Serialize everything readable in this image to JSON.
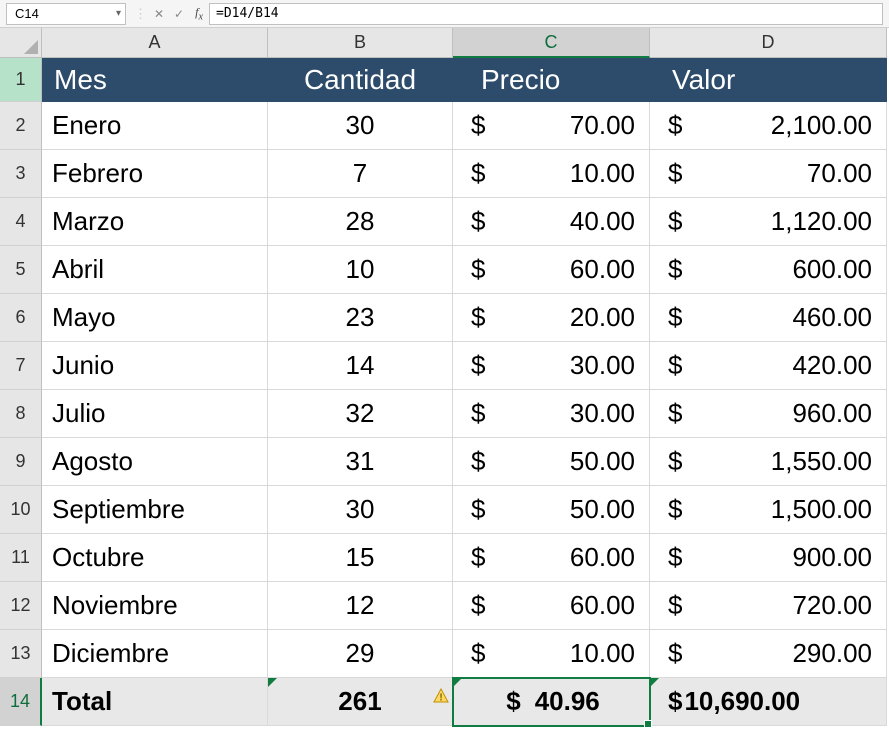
{
  "formula_bar": {
    "cell_ref": "C14",
    "formula": "=D14/B14"
  },
  "columns": {
    "A": "A",
    "B": "B",
    "C": "C",
    "D": "D"
  },
  "headers": {
    "mes": "Mes",
    "cantidad": "Cantidad",
    "precio": "Precio",
    "valor": "Valor"
  },
  "rows": [
    {
      "n": "2",
      "mes": "Enero",
      "cant": "30",
      "precio": "70.00",
      "valor": "2,100.00"
    },
    {
      "n": "3",
      "mes": "Febrero",
      "cant": "7",
      "precio": "10.00",
      "valor": "70.00"
    },
    {
      "n": "4",
      "mes": "Marzo",
      "cant": "28",
      "precio": "40.00",
      "valor": "1,120.00"
    },
    {
      "n": "5",
      "mes": "Abril",
      "cant": "10",
      "precio": "60.00",
      "valor": "600.00"
    },
    {
      "n": "6",
      "mes": "Mayo",
      "cant": "23",
      "precio": "20.00",
      "valor": "460.00"
    },
    {
      "n": "7",
      "mes": "Junio",
      "cant": "14",
      "precio": "30.00",
      "valor": "420.00"
    },
    {
      "n": "8",
      "mes": "Julio",
      "cant": "32",
      "precio": "30.00",
      "valor": "960.00"
    },
    {
      "n": "9",
      "mes": "Agosto",
      "cant": "31",
      "precio": "50.00",
      "valor": "1,550.00"
    },
    {
      "n": "10",
      "mes": "Septiembre",
      "cant": "30",
      "precio": "50.00",
      "valor": "1,500.00"
    },
    {
      "n": "11",
      "mes": "Octubre",
      "cant": "15",
      "precio": "60.00",
      "valor": "900.00"
    },
    {
      "n": "12",
      "mes": "Noviembre",
      "cant": "12",
      "precio": "60.00",
      "valor": "720.00"
    },
    {
      "n": "13",
      "mes": "Diciembre",
      "cant": "29",
      "precio": "10.00",
      "valor": "290.00"
    }
  ],
  "total": {
    "n": "14",
    "label": "Total",
    "cant": "261",
    "precio": "40.96",
    "valor": "10,690.00"
  },
  "currency_symbol": "$",
  "colors": {
    "header_bg": "#2d4b6b",
    "header_fg": "#ffffff",
    "selection": "#107c41",
    "row_hdr_bg": "#e6e6e6",
    "total_bg": "#e8e8e8"
  },
  "active": {
    "col": "C",
    "row": "14"
  }
}
